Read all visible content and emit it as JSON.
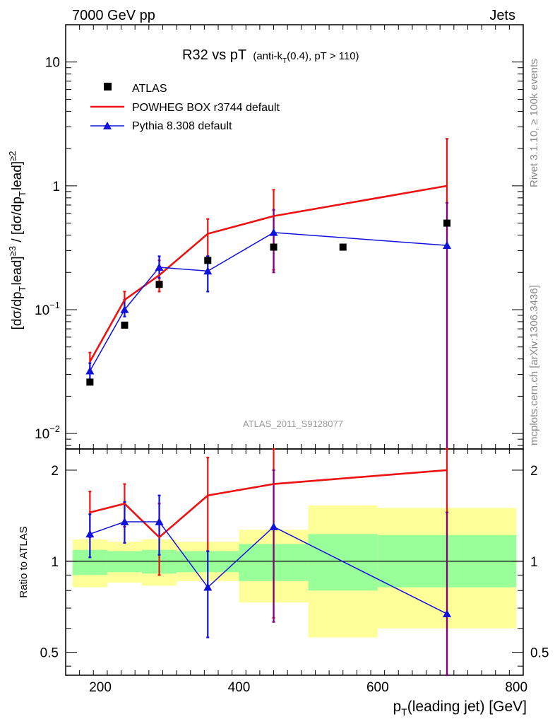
{
  "header": {
    "left": "7000 GeV pp",
    "right": "Jets"
  },
  "title": {
    "main": "R32 vs pT",
    "sub_a": "(anti-k",
    "sub_t": "T",
    "sub_b": "(0.4), pT > 110)"
  },
  "side_labels": {
    "rivet": "Rivet 3.1.10, ≥ 100k events",
    "mcplots": "mcplots.cern.ch [arXiv:1306.3436]"
  },
  "watermark": "ATLAS_2011_S9128077",
  "legend": {
    "atlas": "ATLAS",
    "powheg": "POWHEG BOX r3744 default",
    "pythia": "Pythia 8.308 default"
  },
  "axes": {
    "top_ylabel": "[dσ/dp",
    "ratio_ylabel": "Ratio to ATLAS",
    "xlabel_p": "p",
    "xlabel_sub": "T",
    "xlabel_rest": "(leading jet) [GeV]",
    "top_yticks": [
      "10",
      "1",
      "10",
      "10"
    ],
    "top_ytick_exps": [
      "",
      "",
      "−1",
      "−2"
    ],
    "ratio_yticks": [
      "2",
      "1",
      "0.5"
    ],
    "xticks": [
      "200",
      "400",
      "600",
      "800"
    ]
  },
  "colors": {
    "atlas": "#000000",
    "powheg": "#ee1111",
    "pythia": "#1111dd",
    "band_inner": "#99ff99",
    "band_outer": "#ffff99",
    "overlap": "#800080"
  },
  "chart_data": {
    "type": "scatter",
    "x_range": [
      150,
      810
    ],
    "y_range_top": [
      0.0075,
      20
    ],
    "y_scale_top": "log",
    "y_range_ratio": [
      0.42,
      2.35
    ],
    "y_scale_ratio": "log",
    "atlas": {
      "name": "ATLAS",
      "points": [
        {
          "x": 185,
          "y": 0.026
        },
        {
          "x": 235,
          "y": 0.075
        },
        {
          "x": 285,
          "y": 0.16
        },
        {
          "x": 355,
          "y": 0.25
        },
        {
          "x": 450,
          "y": 0.32
        },
        {
          "x": 550,
          "y": 0.32
        },
        {
          "x": 700,
          "y": 0.5
        }
      ]
    },
    "powheg": {
      "name": "POWHEG BOX r3744 default",
      "points": [
        {
          "x": 185,
          "y": 0.038,
          "lo": 0.031,
          "hi": 0.045
        },
        {
          "x": 235,
          "y": 0.12,
          "lo": 0.1,
          "hi": 0.14
        },
        {
          "x": 285,
          "y": 0.19,
          "lo": 0.14,
          "hi": 0.25
        },
        {
          "x": 355,
          "y": 0.41,
          "lo": 0.27,
          "hi": 0.54
        },
        {
          "x": 450,
          "y": 0.57,
          "lo": 0.21,
          "hi": 0.93
        },
        {
          "x": 700,
          "y": 1.0,
          "lo": 0.0001,
          "hi": 2.4
        }
      ],
      "ratio": [
        {
          "x": 185,
          "y": 1.45,
          "lo": 1.2,
          "hi": 1.7
        },
        {
          "x": 235,
          "y": 1.55,
          "lo": 1.3,
          "hi": 1.8
        },
        {
          "x": 285,
          "y": 1.2,
          "lo": 0.9,
          "hi": 1.55
        },
        {
          "x": 355,
          "y": 1.65,
          "lo": 1.08,
          "hi": 2.2
        },
        {
          "x": 450,
          "y": 1.8,
          "lo": 0.65,
          "hi": 2.9
        },
        {
          "x": 700,
          "y": 2.0,
          "lo": 0.0001,
          "hi": 4.8
        }
      ]
    },
    "pythia": {
      "name": "Pythia 8.308 default",
      "points": [
        {
          "x": 185,
          "y": 0.032,
          "lo": 0.027,
          "hi": 0.037
        },
        {
          "x": 235,
          "y": 0.1,
          "lo": 0.088,
          "hi": 0.12
        },
        {
          "x": 285,
          "y": 0.22,
          "lo": 0.18,
          "hi": 0.27
        },
        {
          "x": 355,
          "y": 0.205,
          "lo": 0.14,
          "hi": 0.27
        },
        {
          "x": 450,
          "y": 0.42,
          "lo": 0.2,
          "hi": 0.64
        },
        {
          "x": 700,
          "y": 0.33,
          "lo": 0.0001,
          "hi": 0.73
        }
      ],
      "ratio": [
        {
          "x": 185,
          "y": 1.23,
          "lo": 1.03,
          "hi": 1.43
        },
        {
          "x": 235,
          "y": 1.35,
          "lo": 1.15,
          "hi": 1.57
        },
        {
          "x": 285,
          "y": 1.35,
          "lo": 1.05,
          "hi": 1.65
        },
        {
          "x": 355,
          "y": 0.82,
          "lo": 0.56,
          "hi": 1.08
        },
        {
          "x": 450,
          "y": 1.3,
          "lo": 0.63,
          "hi": 2.0
        },
        {
          "x": 700,
          "y": 0.67,
          "lo": 0.0001,
          "hi": 1.45
        }
      ]
    },
    "bands": [
      {
        "x0": 160,
        "x1": 210,
        "in_lo": 0.9,
        "in_hi": 1.09,
        "out_lo": 0.82,
        "out_hi": 1.18
      },
      {
        "x0": 210,
        "x1": 260,
        "in_lo": 0.92,
        "in_hi": 1.08,
        "out_lo": 0.85,
        "out_hi": 1.16
      },
      {
        "x0": 260,
        "x1": 310,
        "in_lo": 0.91,
        "in_hi": 1.09,
        "out_lo": 0.83,
        "out_hi": 1.18
      },
      {
        "x0": 310,
        "x1": 400,
        "in_lo": 0.92,
        "in_hi": 1.08,
        "out_lo": 0.86,
        "out_hi": 1.16
      },
      {
        "x0": 400,
        "x1": 500,
        "in_lo": 0.86,
        "in_hi": 1.14,
        "out_lo": 0.73,
        "out_hi": 1.27
      },
      {
        "x0": 500,
        "x1": 600,
        "in_lo": 0.8,
        "in_hi": 1.23,
        "out_lo": 0.56,
        "out_hi": 1.53
      },
      {
        "x0": 600,
        "x1": 800,
        "in_lo": 0.82,
        "in_hi": 1.22,
        "out_lo": 0.6,
        "out_hi": 1.5
      }
    ]
  }
}
